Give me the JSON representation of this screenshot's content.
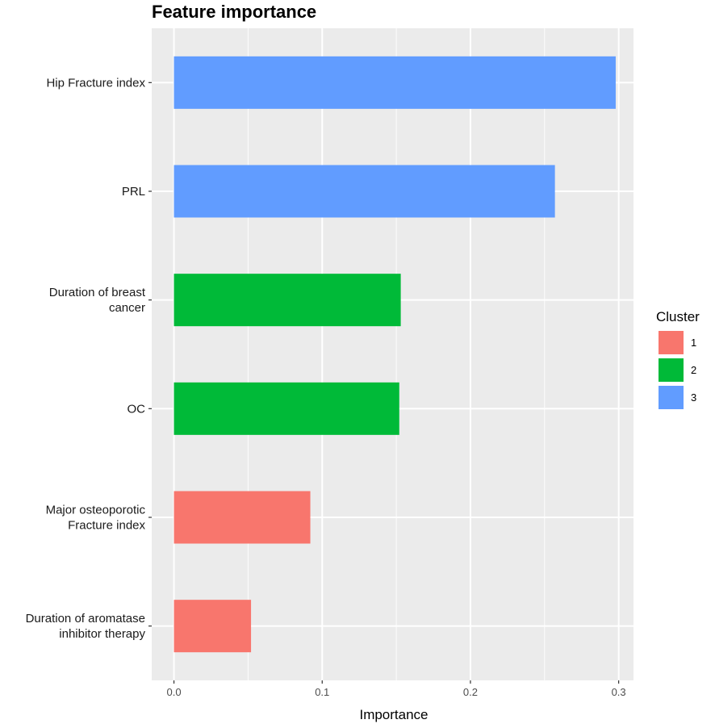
{
  "chart_data": {
    "type": "bar",
    "orientation": "horizontal",
    "title": "Feature importance",
    "xlabel": "Importance",
    "ylabel": "",
    "xlim": [
      -0.015,
      0.31
    ],
    "xticks": [
      "0.0",
      "0.1",
      "0.2",
      "0.3"
    ],
    "grid": true,
    "legend": {
      "title": "Cluster",
      "placement": "right",
      "entries": [
        {
          "label": "1",
          "color": "#F8766D"
        },
        {
          "label": "2",
          "color": "#00BA38"
        },
        {
          "label": "3",
          "color": "#619CFF"
        }
      ]
    },
    "bars": [
      {
        "label": [
          "Hip Fracture index"
        ],
        "value": 0.298,
        "cluster": "3"
      },
      {
        "label": [
          "PRL"
        ],
        "value": 0.257,
        "cluster": "3"
      },
      {
        "label": [
          "Duration of breast",
          "cancer"
        ],
        "value": 0.153,
        "cluster": "2"
      },
      {
        "label": [
          "OC"
        ],
        "value": 0.152,
        "cluster": "2"
      },
      {
        "label": [
          "Major osteoporotic",
          "Fracture index"
        ],
        "value": 0.092,
        "cluster": "1"
      },
      {
        "label": [
          "Duration of aromatase",
          "inhibitor therapy"
        ],
        "value": 0.052,
        "cluster": "1"
      }
    ]
  }
}
